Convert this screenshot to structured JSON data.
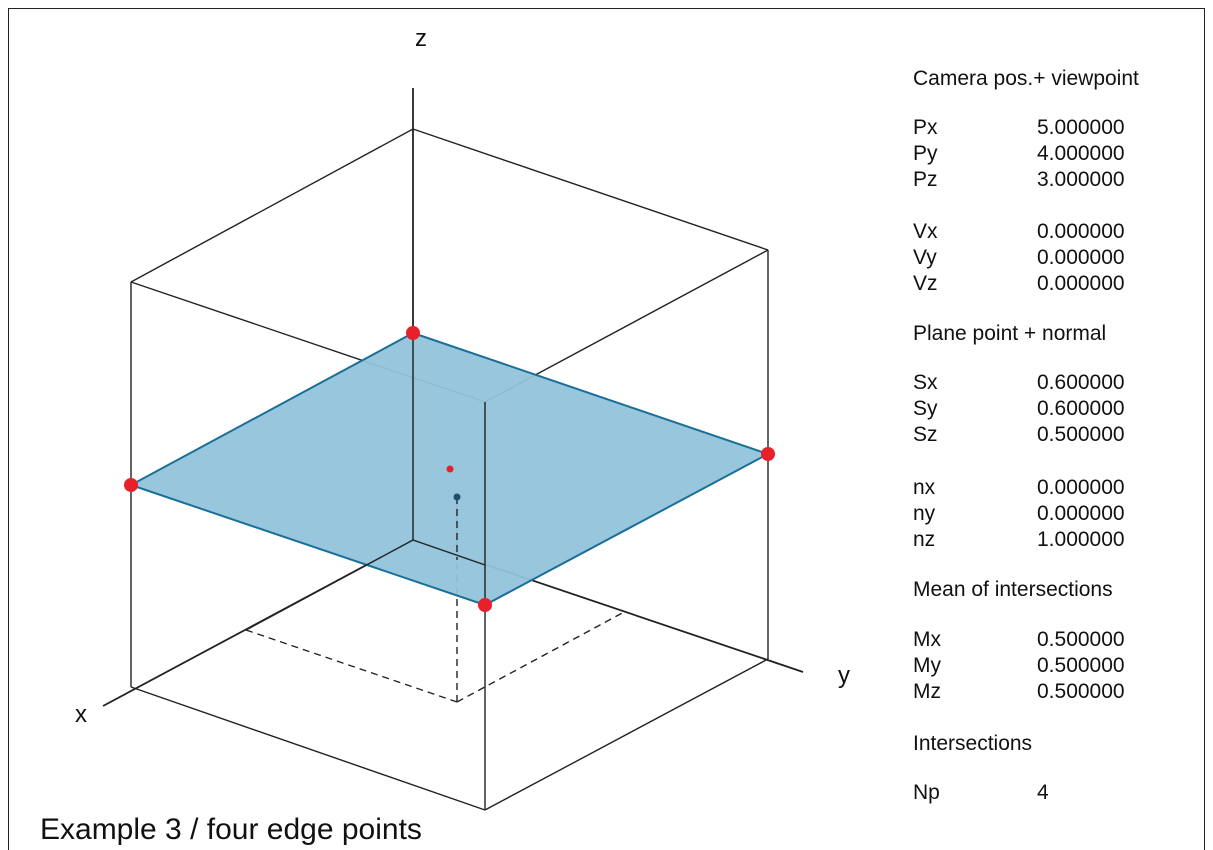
{
  "axes": {
    "x": "x",
    "y": "y",
    "z": "z"
  },
  "caption": "Example 3 / four edge points",
  "colors": {
    "plane_fill": "#92c3da",
    "plane_edge": "#1a6f98",
    "point": "#e8202a",
    "mean_point": "#1f4f6a",
    "line": "#222222"
  },
  "panel": {
    "camera": {
      "heading": "Camera pos.+ viewpoint",
      "position": [
        {
          "label": "Px",
          "value": "5.000000"
        },
        {
          "label": "Py",
          "value": "4.000000"
        },
        {
          "label": "Pz",
          "value": "3.000000"
        }
      ],
      "viewpoint": [
        {
          "label": "Vx",
          "value": "0.000000"
        },
        {
          "label": "Vy",
          "value": "0.000000"
        },
        {
          "label": "Vz",
          "value": "0.000000"
        }
      ]
    },
    "plane": {
      "heading": "Plane point + normal",
      "point": [
        {
          "label": "Sx",
          "value": "0.600000"
        },
        {
          "label": "Sy",
          "value": "0.600000"
        },
        {
          "label": "Sz",
          "value": "0.500000"
        }
      ],
      "normal": [
        {
          "label": "nx",
          "value": "0.000000"
        },
        {
          "label": "ny",
          "value": "0.000000"
        },
        {
          "label": "nz",
          "value": "1.000000"
        }
      ]
    },
    "mean": {
      "heading": "Mean of intersections",
      "values": [
        {
          "label": "Mx",
          "value": "0.500000"
        },
        {
          "label": "My",
          "value": "0.500000"
        },
        {
          "label": "Mz",
          "value": "0.500000"
        }
      ]
    },
    "intersections": {
      "heading": "Intersections",
      "values": [
        {
          "label": "Np",
          "value": "4"
        }
      ]
    }
  }
}
